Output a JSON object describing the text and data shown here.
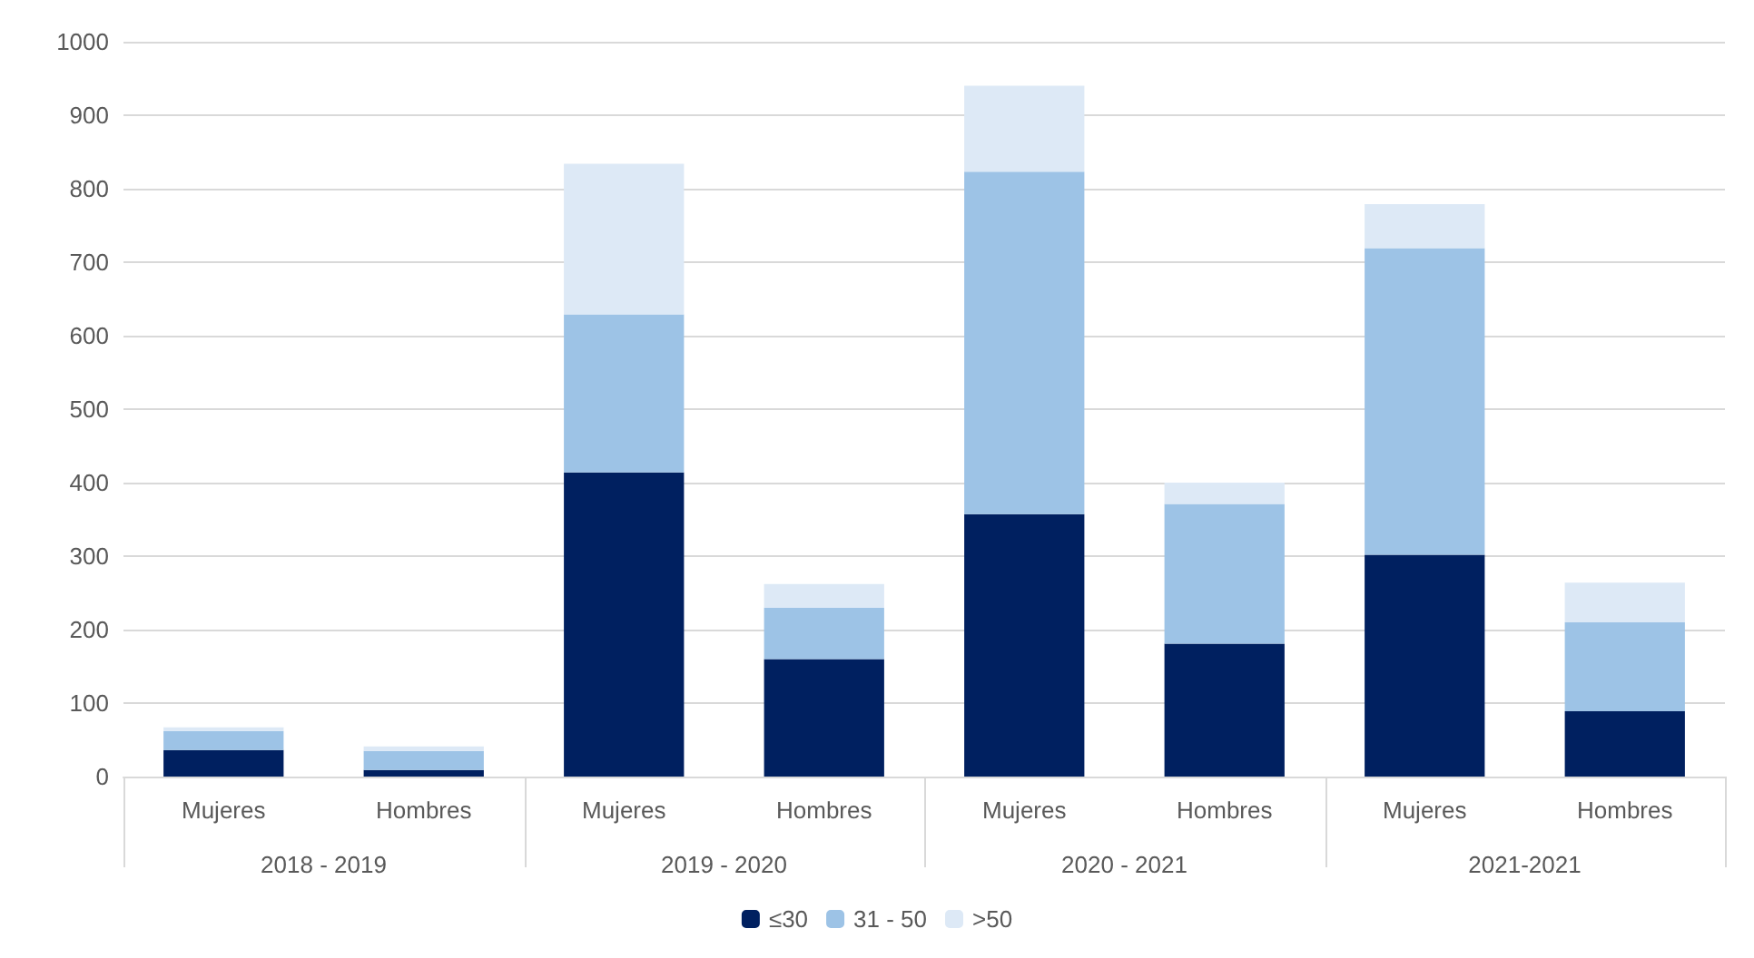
{
  "chart_data": {
    "type": "bar",
    "stacked": true,
    "categories": [
      "Mujeres",
      "Hombres",
      "Mujeres",
      "Hombres",
      "Mujeres",
      "Hombres",
      "Mujeres",
      "Hombres"
    ],
    "series": [
      {
        "name": "≤30",
        "color": "#002060",
        "values": [
          36,
          9,
          414,
          160,
          357,
          181,
          302,
          89
        ]
      },
      {
        "name": "31 - 50",
        "color": "#9dc3e6",
        "values": [
          26,
          26,
          215,
          70,
          466,
          190,
          417,
          121
        ]
      },
      {
        "name": ">50",
        "color": "#dde9f6",
        "values": [
          5,
          6,
          205,
          32,
          117,
          29,
          60,
          54
        ]
      }
    ],
    "annotations": [
      "2018 - 2019",
      "2019 - 2020",
      "2020 - 2021",
      "2021-2021"
    ],
    "ylim": [
      0,
      1000
    ],
    "yticks": [
      0,
      100,
      200,
      300,
      400,
      500,
      600,
      700,
      800,
      900,
      {
        "value": 1000,
        "label": "1000"
      }
    ],
    "grid": "y",
    "legend": "bottom"
  }
}
